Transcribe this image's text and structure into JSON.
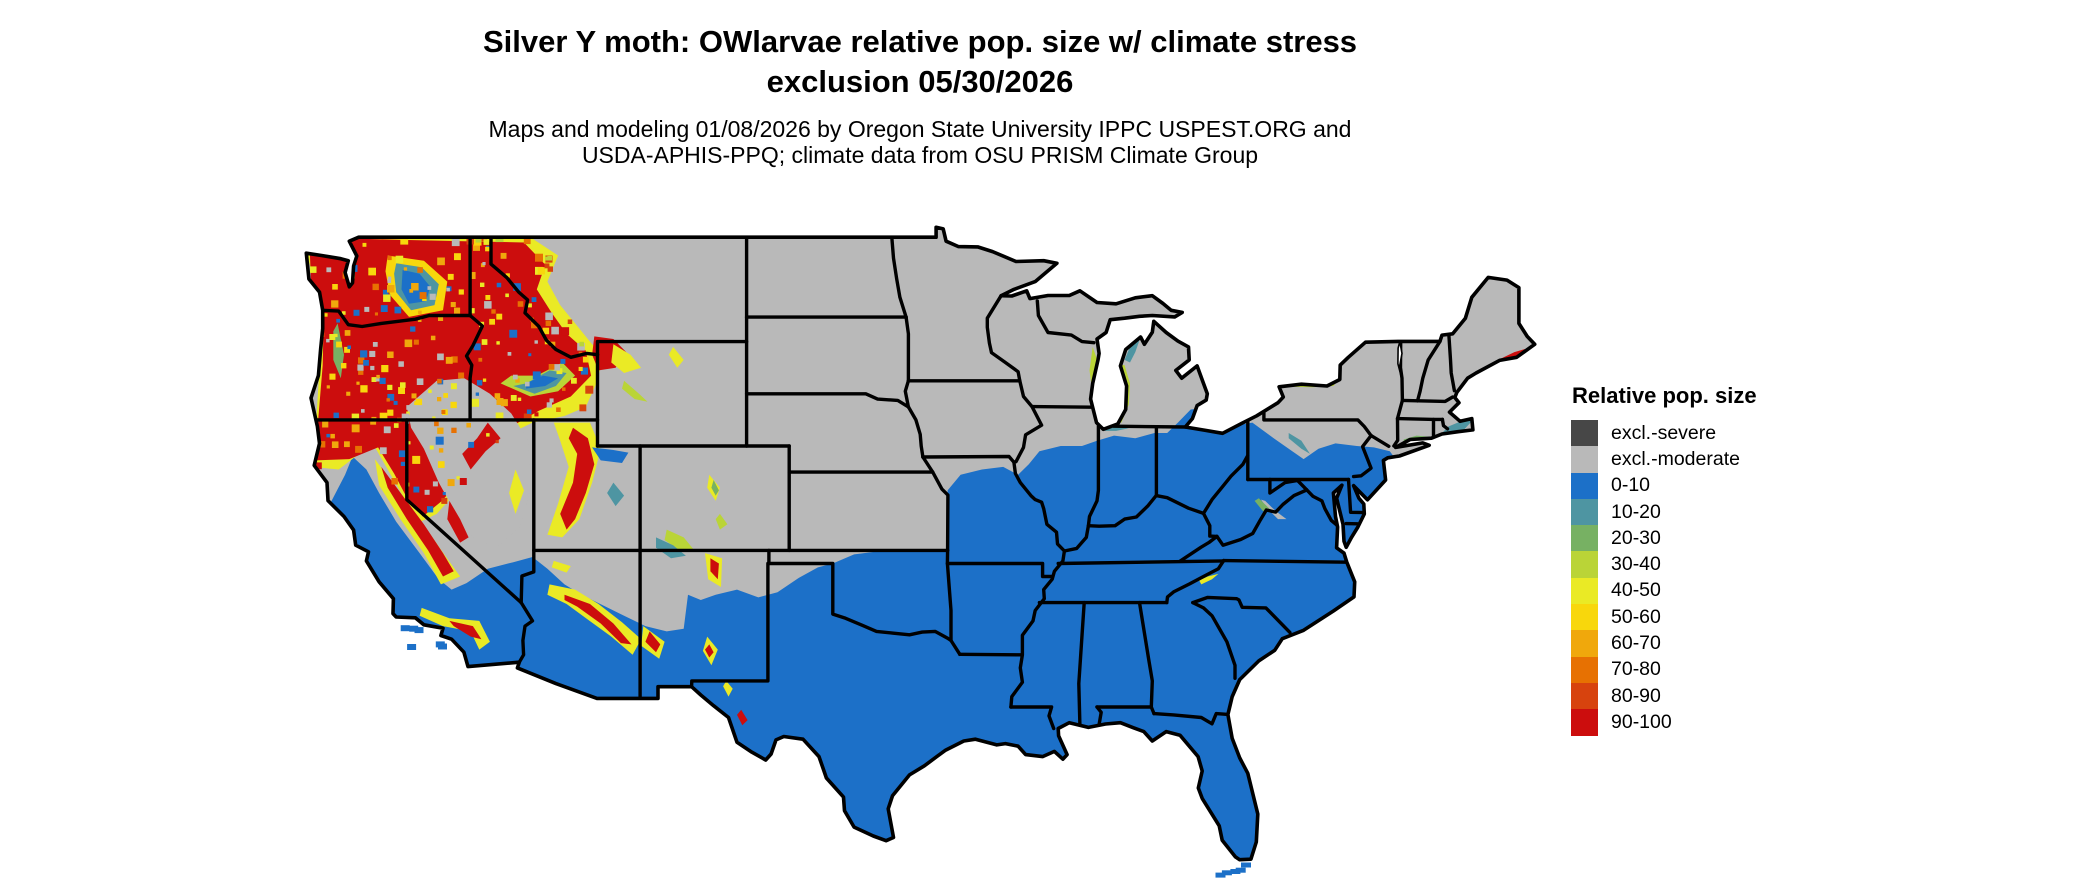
{
  "figure": {
    "background_color": "#ffffff",
    "title_line1": "Silver Y moth: OWlarvae relative pop. size w/ climate stress",
    "title_line2": "exclusion 05/30/2026",
    "subtitle_line1": "Maps and modeling 01/08/2026 by Oregon State University IPPC USPEST.ORG and",
    "subtitle_line2": "USDA-APHIS-PPQ; climate data from OSU PRISM Climate Group"
  },
  "legend": {
    "title": "Relative pop. size",
    "items": [
      {
        "label": "excl.-severe",
        "color": "#474747"
      },
      {
        "label": "excl.-moderate",
        "color": "#b9b9b9"
      },
      {
        "label": "0-10",
        "color": "#1c70c8"
      },
      {
        "label": "10-20",
        "color": "#4e95a2"
      },
      {
        "label": "20-30",
        "color": "#77b163"
      },
      {
        "label": "30-40",
        "color": "#bad437"
      },
      {
        "label": "40-50",
        "color": "#eaea25"
      },
      {
        "label": "50-60",
        "color": "#f8d70c"
      },
      {
        "label": "60-70",
        "color": "#f0a80c"
      },
      {
        "label": "70-80",
        "color": "#e77102"
      },
      {
        "label": "80-90",
        "color": "#d7430e"
      },
      {
        "label": "90-100",
        "color": "#cc0d0d"
      }
    ]
  },
  "map": {
    "outline_color": "#000000",
    "water_color": "#ffffff"
  }
}
